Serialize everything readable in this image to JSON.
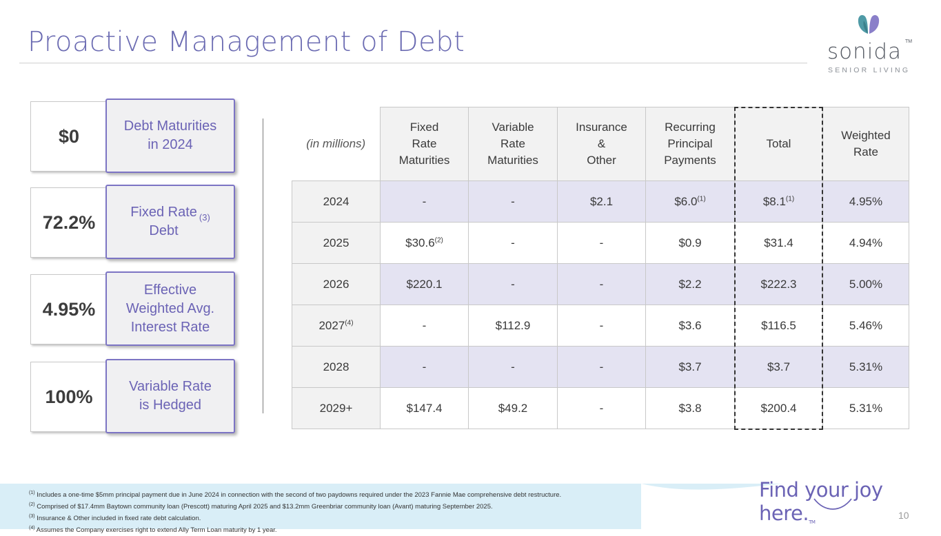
{
  "header": {
    "title": "Proactive Management of Debt"
  },
  "logo": {
    "wordmark": "sonida",
    "tm": "TM",
    "subtitle": "SENIOR LIVING"
  },
  "stats": [
    {
      "value": "$0",
      "label": "Debt Maturities\nin 2024"
    },
    {
      "value": "72.2%",
      "label": "Fixed Rate\nDebt",
      "label_sup": "(3)"
    },
    {
      "value": "4.95%",
      "label": "Effective\nWeighted Avg.\nInterest Rate"
    },
    {
      "value": "100%",
      "label": "Variable Rate\nis Hedged"
    }
  ],
  "table": {
    "unit_label": "(in millions)",
    "headers": [
      "Fixed\nRate\nMaturities",
      "Variable\nRate\nMaturities",
      "Insurance\n&\nOther",
      "Recurring\nPrincipal\nPayments",
      "Total",
      "Weighted\nRate"
    ],
    "rows": [
      {
        "year": "2024",
        "year_sup": "",
        "fixed": "-",
        "fixed_sup": "",
        "variable": "-",
        "insurance": "$2.1",
        "recurring": "$6.0",
        "recurring_sup": "(1)",
        "total": "$8.1",
        "total_sup": "(1)",
        "rate": "4.95%"
      },
      {
        "year": "2025",
        "year_sup": "",
        "fixed": "$30.6",
        "fixed_sup": "(2)",
        "variable": "-",
        "insurance": "-",
        "recurring": "$0.9",
        "recurring_sup": "",
        "total": "$31.4",
        "total_sup": "",
        "rate": "4.94%"
      },
      {
        "year": "2026",
        "year_sup": "",
        "fixed": "$220.1",
        "fixed_sup": "",
        "variable": "-",
        "insurance": "-",
        "recurring": "$2.2",
        "recurring_sup": "",
        "total": "$222.3",
        "total_sup": "",
        "rate": "5.00%"
      },
      {
        "year": "2027",
        "year_sup": "(4)",
        "fixed": "-",
        "fixed_sup": "",
        "variable": "$112.9",
        "insurance": "-",
        "recurring": "$3.6",
        "recurring_sup": "",
        "total": "$116.5",
        "total_sup": "",
        "rate": "5.46%"
      },
      {
        "year": "2028",
        "year_sup": "",
        "fixed": "-",
        "fixed_sup": "",
        "variable": "-",
        "insurance": "-",
        "recurring": "$3.7",
        "recurring_sup": "",
        "total": "$3.7",
        "total_sup": "",
        "rate": "5.31%"
      },
      {
        "year": "2029+",
        "year_sup": "",
        "fixed": "$147.4",
        "fixed_sup": "",
        "variable": "$49.2",
        "insurance": "-",
        "recurring": "$3.8",
        "recurring_sup": "",
        "total": "$200.4",
        "total_sup": "",
        "rate": "5.31%"
      }
    ]
  },
  "footnotes": [
    {
      "sup": "(1)",
      "text": " Includes a one-time $5mm principal payment due in June 2024 in connection with the second of two paydowns required under the 2023 Fannie Mae comprehensive debt restructure."
    },
    {
      "sup": "(2)",
      "text": " Comprised of $17.4mm Baytown community loan (Prescott) maturing April 2025 and $13.2mm Greenbriar community loan (Avant) maturing September 2025."
    },
    {
      "sup": "(3)",
      "text": " Insurance & Other included in fixed rate debt calculation."
    },
    {
      "sup": "(4)",
      "text": " Assumes the Company exercises right to extend Ally Term Loan maturity by 1 year."
    }
  ],
  "tagline": "Find your joy here.",
  "tagline_tm": "TM",
  "page_number": "10",
  "colors": {
    "accent": "#6b63b5",
    "row_shade": "#e4e3f2",
    "footer_band": "#d9eef7"
  }
}
